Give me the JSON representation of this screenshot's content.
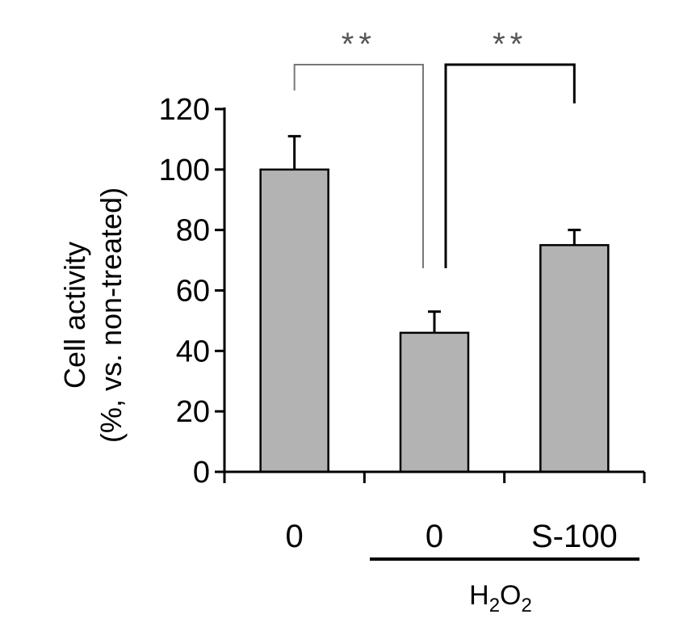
{
  "chart_data": {
    "type": "bar",
    "categories": [
      "0",
      "0",
      "S-100"
    ],
    "values": [
      100,
      46,
      75
    ],
    "errors": [
      11,
      7,
      5
    ],
    "ylabel_line1": "Cell activity",
    "ylabel_line2": "(%, vs. non-treated)",
    "ylim": [
      0,
      120
    ],
    "yticks": [
      "0",
      "20",
      "40",
      "60",
      "80",
      "100",
      "120"
    ],
    "grid": false,
    "group": {
      "label_main": "H",
      "label_sub1": "2",
      "label_mid": "O",
      "label_sub2": "2",
      "categories_covered": [
        1,
        2
      ]
    },
    "significance": [
      {
        "from": 0,
        "to": 1,
        "label": "**",
        "style": "thin"
      },
      {
        "from": 1,
        "to": 2,
        "label": "**",
        "style": "thick"
      }
    ],
    "colors": {
      "bar": "#b3b3b3",
      "axis": "#000000",
      "bracket_thin": "#777777",
      "bracket_thick": "#000000"
    }
  }
}
